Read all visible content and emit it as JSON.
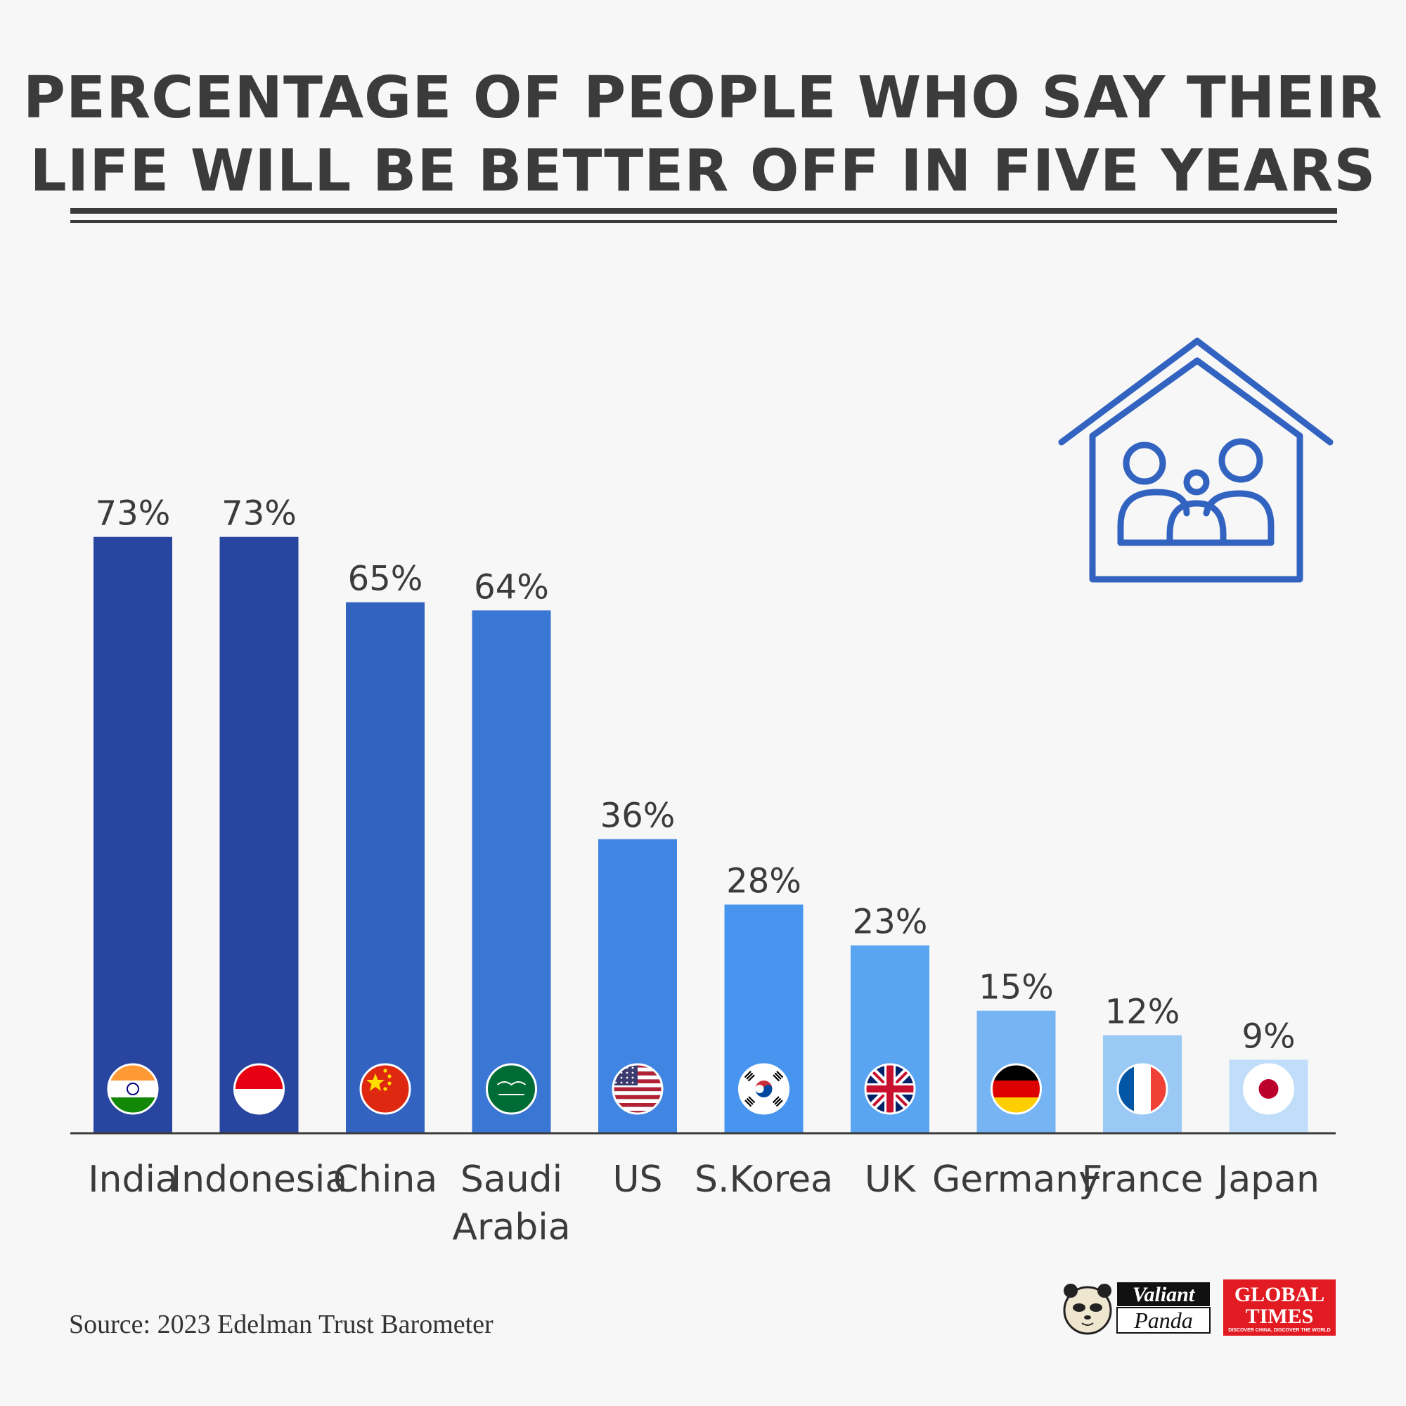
{
  "header": {
    "title_line1": "PERCENTAGE OF PEOPLE WHO SAY THEIR",
    "title_line2": "LIFE WILL BE BETTER OFF IN FIVE YEARS"
  },
  "chart_data": {
    "type": "bar",
    "title": "PERCENTAGE OF PEOPLE WHO SAY THEIR LIFE WILL BE BETTER OFF IN FIVE YEARS",
    "xlabel": "",
    "ylabel": "",
    "ylim": [
      0,
      100
    ],
    "grid": false,
    "categories": [
      "India",
      "Indonesia",
      "China",
      "Saudi Arabia",
      "US",
      "S.Korea",
      "UK",
      "Germany",
      "France",
      "Japan"
    ],
    "category_lines": [
      [
        "India"
      ],
      [
        "Indonesia"
      ],
      [
        "China"
      ],
      [
        "Saudi",
        "Arabia"
      ],
      [
        "US"
      ],
      [
        "S.Korea"
      ],
      [
        "UK"
      ],
      [
        "Germany"
      ],
      [
        "France"
      ],
      [
        "Japan"
      ]
    ],
    "values": [
      73,
      73,
      65,
      64,
      36,
      28,
      23,
      15,
      12,
      9
    ],
    "value_labels": [
      "73%",
      "73%",
      "65%",
      "64%",
      "36%",
      "28%",
      "23%",
      "15%",
      "12%",
      "9%"
    ],
    "bar_colors": [
      "#28469f",
      "#28469f",
      "#3363c0",
      "#3a77d4",
      "#4185e2",
      "#4795ef",
      "#5aa5f1",
      "#76b4f3",
      "#9ac9f5",
      "#c0defa"
    ],
    "flags": [
      "india-flag-icon",
      "indonesia-flag-icon",
      "china-flag-icon",
      "saudi-arabia-flag-icon",
      "us-flag-icon",
      "south-korea-flag-icon",
      "uk-flag-icon",
      "germany-flag-icon",
      "france-flag-icon",
      "japan-flag-icon"
    ]
  },
  "colors": {
    "text_dark": "#3b3b3b",
    "icon_blue": "#3363c0",
    "background": "#f7f7f7"
  },
  "illustration": {
    "icon": "house-family-icon"
  },
  "footer": {
    "source": "Source: 2023 Edelman Trust Barometer",
    "logo1_line1": "Valiant",
    "logo1_line2": "Panda",
    "logo2_line1": "GLOBAL",
    "logo2_line2": "TIMES",
    "logo2_tagline": "DISCOVER CHINA, DISCOVER THE WORLD"
  }
}
